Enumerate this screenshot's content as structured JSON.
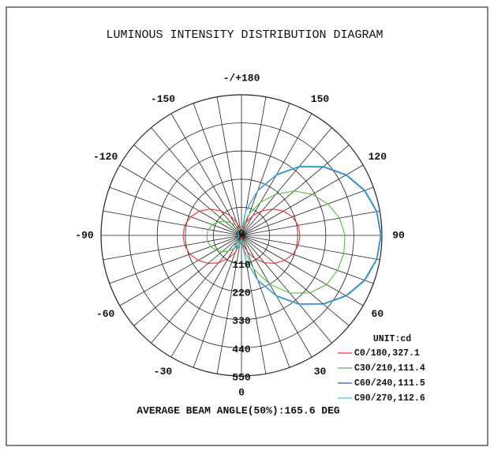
{
  "chart_data": {
    "type": "polar",
    "title": "LUMINOUS INTENSITY DISTRIBUTION DIAGRAM",
    "annotation": "AVERAGE BEAM ANGLE(50%):165.6 DEG",
    "unit_label": "UNIT:cd",
    "x": [
      -180,
      -170,
      -160,
      -150,
      -140,
      -130,
      -120,
      -110,
      -100,
      -90,
      -80,
      -70,
      -60,
      -50,
      -40,
      -30,
      -20,
      -10,
      0,
      10,
      20,
      30,
      40,
      50,
      60,
      70,
      80,
      90,
      100,
      110,
      120,
      130,
      140,
      150,
      160,
      170,
      180
    ],
    "rlim": [
      0,
      550
    ],
    "rticks": [
      0,
      110,
      220,
      330,
      440,
      550
    ],
    "angle_ticks": [
      {
        "value": 180,
        "label": "-/+180"
      },
      150,
      120,
      90,
      60,
      30,
      0,
      -30,
      -60,
      -90,
      -120,
      -150
    ],
    "spoke_step": 10,
    "series": [
      {
        "name": "C0/180,327.1",
        "color": "#e8303a",
        "values": [
          5,
          25,
          55,
          90,
          125,
          160,
          190,
          212,
          226,
          229,
          226,
          215,
          195,
          170,
          140,
          105,
          70,
          35,
          5,
          35,
          70,
          105,
          140,
          170,
          195,
          215,
          226,
          229,
          226,
          212,
          190,
          160,
          125,
          90,
          55,
          25,
          5
        ]
      },
      {
        "name": "C30/210,111.4",
        "color": "#5cb84a",
        "values": [
          10,
          15,
          28,
          45,
          65,
          85,
          105,
          122,
          132,
          136,
          135,
          128,
          115,
          100,
          80,
          60,
          40,
          20,
          15,
          60,
          140,
          220,
          295,
          350,
          385,
          400,
          407,
          405,
          390,
          360,
          320,
          270,
          210,
          150,
          90,
          40,
          10
        ]
      },
      {
        "name": "C60/240,111.5",
        "color": "#2f5fa8",
        "values": [
          15,
          10,
          10,
          10,
          10,
          10,
          10,
          10,
          10,
          10,
          10,
          10,
          10,
          20,
          35,
          50,
          55,
          40,
          20,
          95,
          186,
          272,
          350,
          417,
          472,
          512,
          537,
          545,
          537,
          512,
          472,
          417,
          350,
          272,
          186,
          95,
          15
        ]
      },
      {
        "name": "C90/270,112.6",
        "color": "#4cc0d8",
        "values": [
          15,
          12,
          12,
          12,
          12,
          12,
          12,
          12,
          12,
          12,
          12,
          12,
          12,
          22,
          38,
          52,
          58,
          42,
          22,
          98,
          190,
          276,
          354,
          420,
          476,
          516,
          540,
          548,
          540,
          516,
          476,
          420,
          354,
          276,
          190,
          98,
          15
        ]
      }
    ]
  }
}
